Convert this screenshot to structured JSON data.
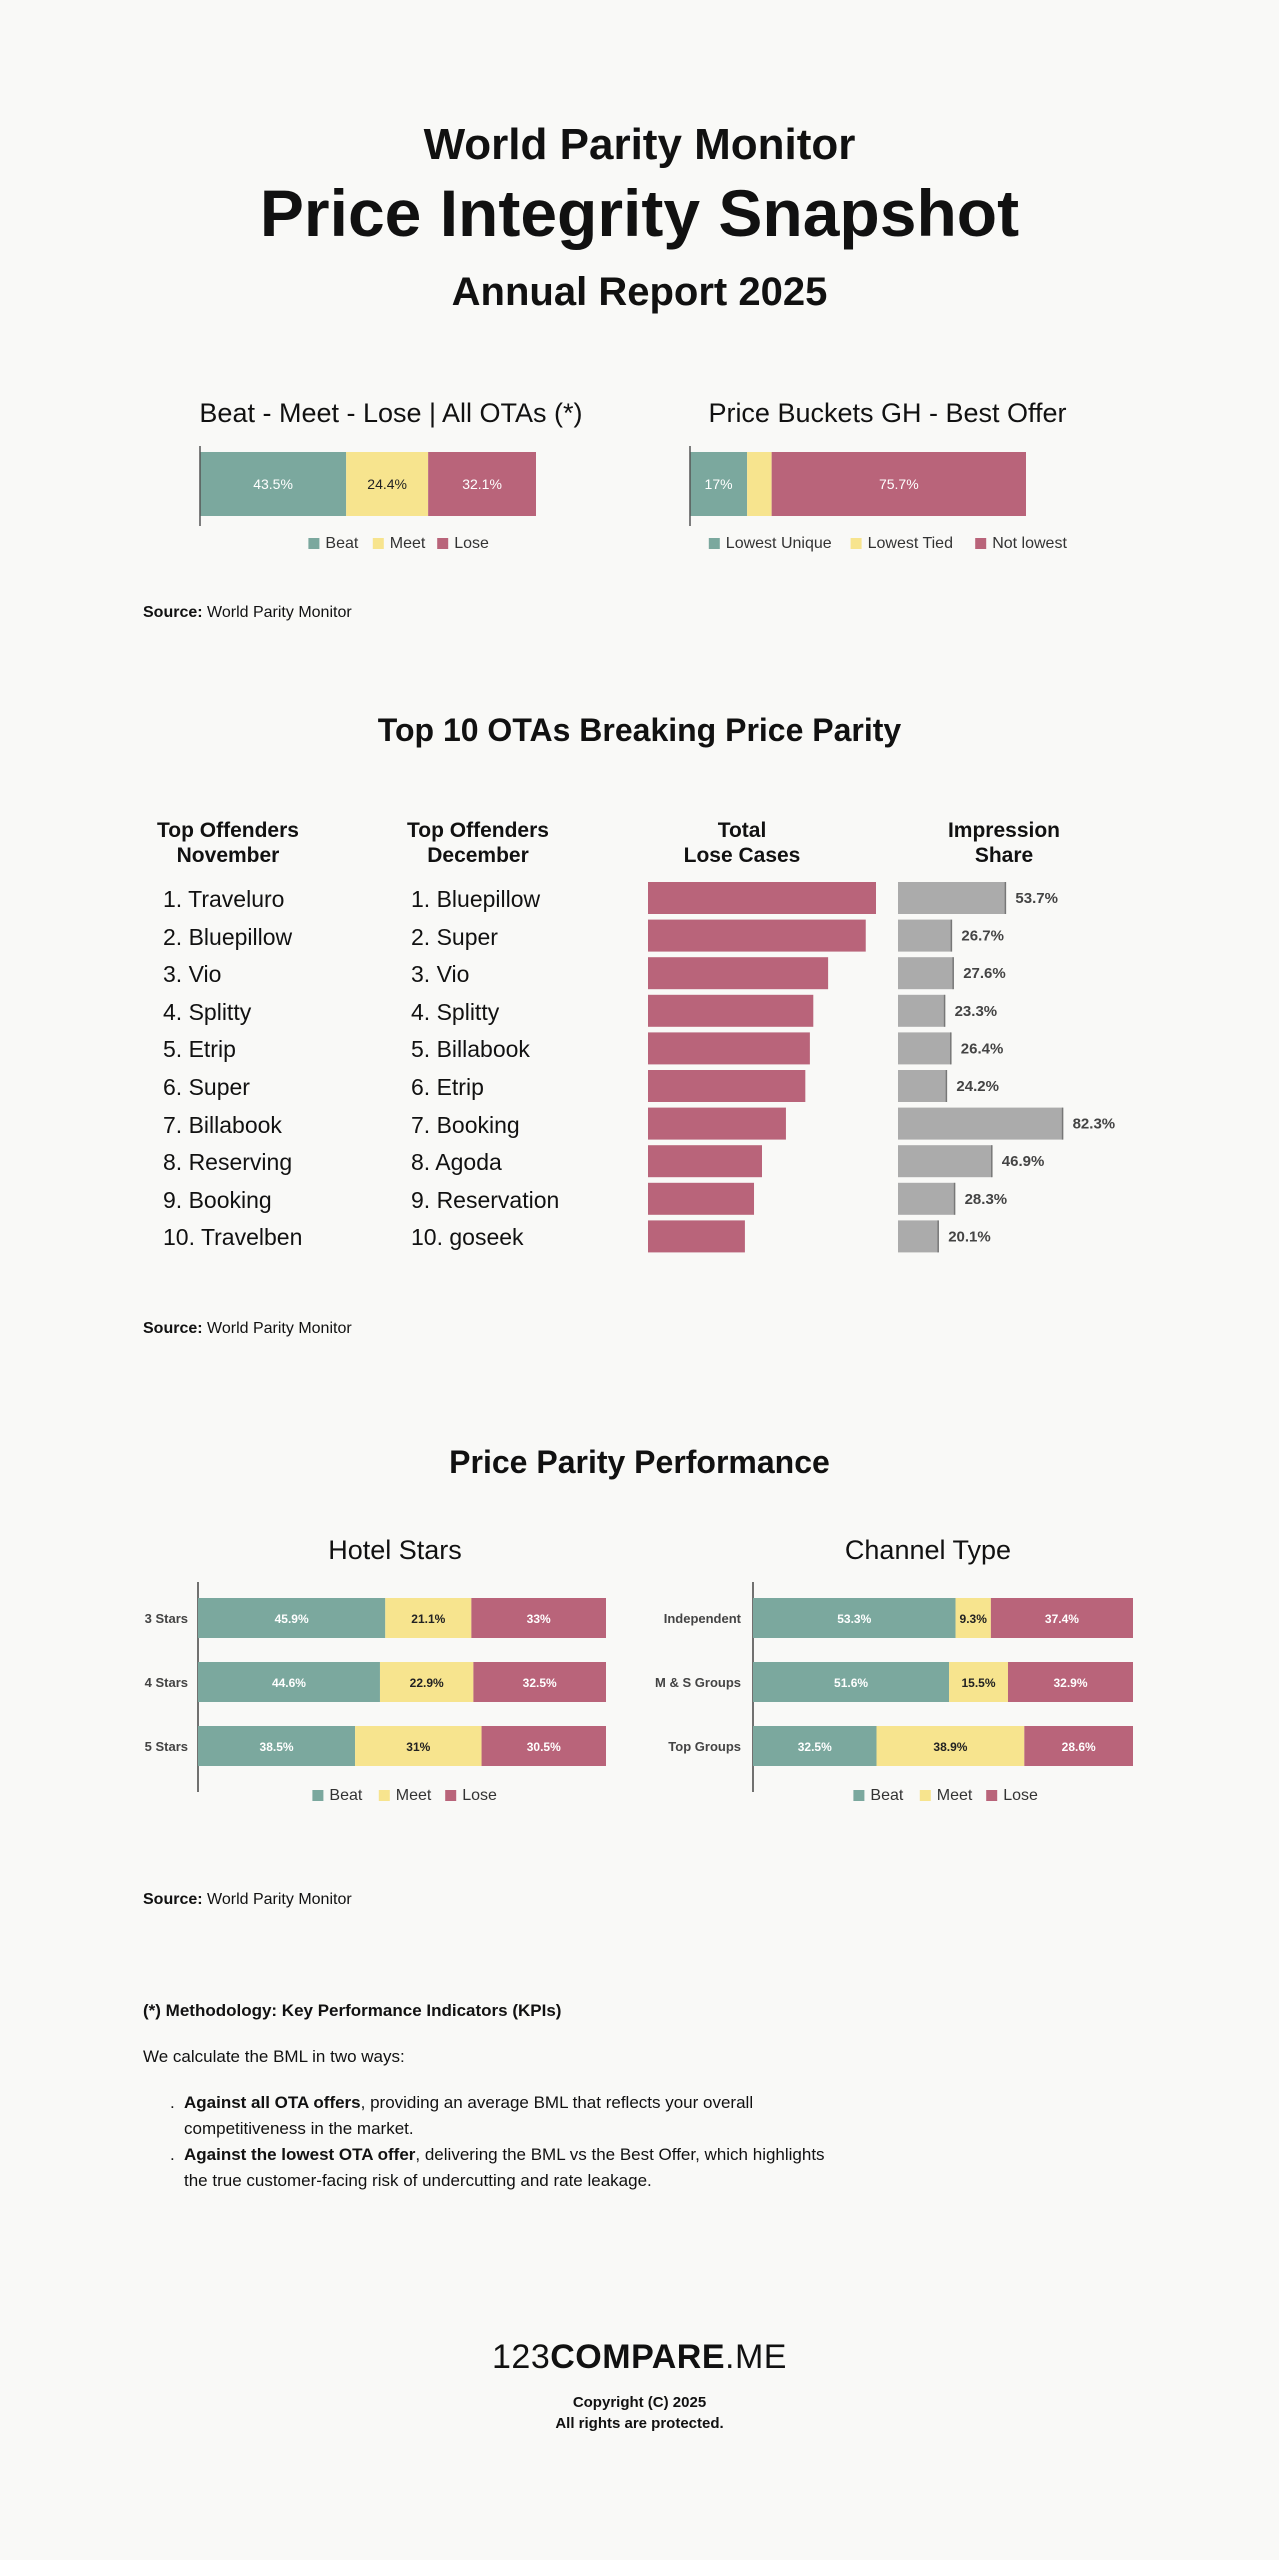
{
  "header": {
    "pretitle": "World Parity Monitor",
    "title": "Price Integrity Snapshot",
    "subtitle": "Annual Report 2025"
  },
  "colors": {
    "beat": "#7ba89e",
    "meet": "#f7e48e",
    "lose": "#b9647a",
    "gray": "#ababab",
    "text": "#111111"
  },
  "chart_data": [
    {
      "id": "bml",
      "type": "bar",
      "orientation": "horizontal-stacked",
      "title": "Beat - Meet - Lose | All OTAs (*)",
      "series": [
        {
          "name": "Beat",
          "values": [
            43.5
          ],
          "labels": [
            "43.5%"
          ]
        },
        {
          "name": "Meet",
          "values": [
            24.4
          ],
          "labels": [
            "24.4%"
          ]
        },
        {
          "name": "Lose",
          "values": [
            32.1
          ],
          "labels": [
            "32.1%"
          ]
        }
      ],
      "legend": "bottom"
    },
    {
      "id": "buckets",
      "type": "bar",
      "orientation": "horizontal-stacked",
      "title": "Price Buckets GH - Best Offer",
      "series": [
        {
          "name": "Lowest Unique",
          "values": [
            17
          ],
          "labels": [
            "17%"
          ]
        },
        {
          "name": "Lowest Tied",
          "values": [
            7.3
          ],
          "labels": [
            "7.3%"
          ]
        },
        {
          "name": "Not lowest",
          "values": [
            75.7
          ],
          "labels": [
            "75.7%"
          ]
        }
      ],
      "legend": "bottom"
    },
    {
      "id": "lose_cases",
      "type": "bar",
      "orientation": "horizontal",
      "title": "Total Lose Cases",
      "categories": [
        "1",
        "2",
        "3",
        "4",
        "5",
        "6",
        "7",
        "8",
        "9",
        "10"
      ],
      "values": [
        100,
        95.5,
        79,
        72.5,
        71,
        69,
        60.5,
        50,
        46.5,
        42.5
      ],
      "color": "lose"
    },
    {
      "id": "impression",
      "type": "bar",
      "orientation": "horizontal",
      "title": "Impression Share",
      "categories": [
        "1",
        "2",
        "3",
        "4",
        "5",
        "6",
        "7",
        "8",
        "9",
        "10"
      ],
      "values": [
        53.7,
        26.7,
        27.6,
        23.3,
        26.4,
        24.2,
        82.3,
        46.9,
        28.3,
        20.1
      ],
      "labels": [
        "53.7%",
        "26.7%",
        "27.6%",
        "23.3%",
        "26.4%",
        "24.2%",
        "82.3%",
        "46.9%",
        "28.3%",
        "20.1%"
      ],
      "color": "gray"
    },
    {
      "id": "stars",
      "type": "bar",
      "orientation": "horizontal-stacked",
      "title": "Hotel Stars",
      "categories": [
        "3 Stars",
        "4 Stars",
        "5 Stars"
      ],
      "series": [
        {
          "name": "Beat",
          "values": [
            45.9,
            44.6,
            38.5
          ],
          "labels": [
            "45.9%",
            "44.6%",
            "38.5%"
          ]
        },
        {
          "name": "Meet",
          "values": [
            21.1,
            22.9,
            31
          ],
          "labels": [
            "21.1%",
            "22.9%",
            "31%"
          ]
        },
        {
          "name": "Lose",
          "values": [
            33,
            32.5,
            30.5
          ],
          "labels": [
            "33%",
            "32.5%",
            "30.5%"
          ]
        }
      ],
      "legend": "bottom"
    },
    {
      "id": "channel",
      "type": "bar",
      "orientation": "horizontal-stacked",
      "title": "Channel Type",
      "categories": [
        "Independent",
        "M & S Groups",
        "Top Groups"
      ],
      "series": [
        {
          "name": "Beat",
          "values": [
            53.3,
            51.6,
            32.5
          ],
          "labels": [
            "53.3%",
            "51.6%",
            "32.5%"
          ]
        },
        {
          "name": "Meet",
          "values": [
            9.3,
            15.5,
            38.9
          ],
          "labels": [
            "9.3%",
            "15.5%",
            "38.9%"
          ]
        },
        {
          "name": "Lose",
          "values": [
            37.4,
            32.9,
            28.6
          ],
          "labels": [
            "37.4%",
            "32.9%",
            "28.6%"
          ]
        }
      ],
      "legend": "bottom"
    }
  ],
  "sections": {
    "top10_title": "Top 10 OTAs Breaking Price Parity",
    "performance_title": "Price Parity Performance"
  },
  "top10": {
    "headers": {
      "nov": [
        "Top Offenders",
        "November"
      ],
      "dec": [
        "Top Offenders",
        "December"
      ],
      "lose": [
        "Total",
        "Lose Cases"
      ],
      "share": [
        "Impression",
        "Share"
      ]
    },
    "november": [
      "1. Traveluro",
      "2. Bluepillow",
      "3. Vio",
      "4. Splitty",
      "5. Etrip",
      "6. Super",
      "7. Billabook",
      "8. Reserving",
      "9. Booking",
      "10. Travelben"
    ],
    "december": [
      "1. Bluepillow",
      "2. Super",
      "3. Vio",
      "4. Splitty",
      "5. Billabook",
      "6. Etrip",
      "7. Booking",
      "8. Agoda",
      "9. Reservation",
      "10. goseek"
    ]
  },
  "source": {
    "label": "Source:",
    "text": "World Parity Monitor"
  },
  "methodology": {
    "title": "(*) Methodology: Key Performance Indicators (KPIs)",
    "intro": "We calculate the BML in two ways:",
    "bullets": [
      {
        "bold": "Against all OTA offers",
        "rest": ", providing an average BML that reflects your overall competitiveness in the market."
      },
      {
        "bold": "Against the lowest OTA offer",
        "rest": ", delivering the BML vs the Best Offer, which highlights the true customer-facing risk of undercutting and rate leakage."
      }
    ]
  },
  "footer": {
    "logo_prefix": "123",
    "logo_bold": "COMPARE",
    "logo_suffix": ".ME",
    "copyright": "Copyright (C) 2025",
    "rights": "All rights are protected."
  }
}
